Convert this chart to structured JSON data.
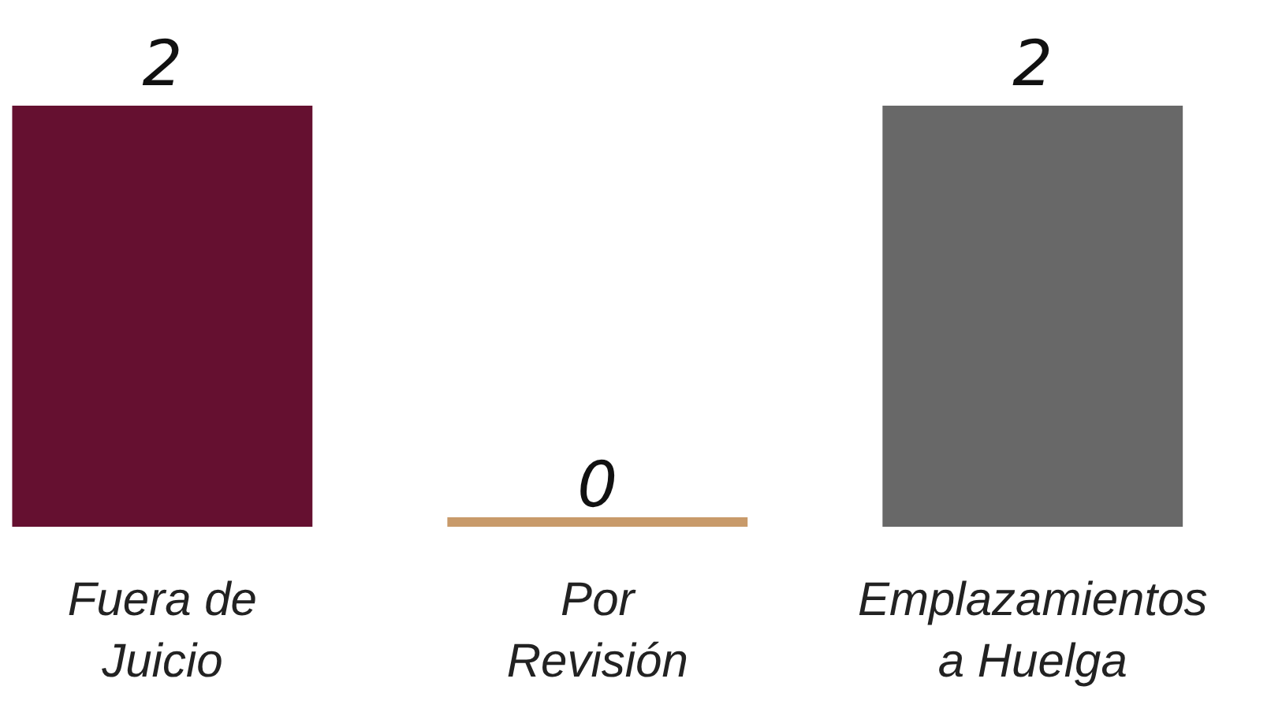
{
  "chart_data": {
    "type": "bar",
    "categories": [
      "Fuera de Juicio",
      "Por Revisión",
      "Emplazamientos a Huelga"
    ],
    "values": [
      2,
      0,
      2
    ],
    "colors": [
      "#651030",
      "#c89a6a",
      "#686868"
    ],
    "data_labels": true,
    "tick_labels": "x"
  }
}
